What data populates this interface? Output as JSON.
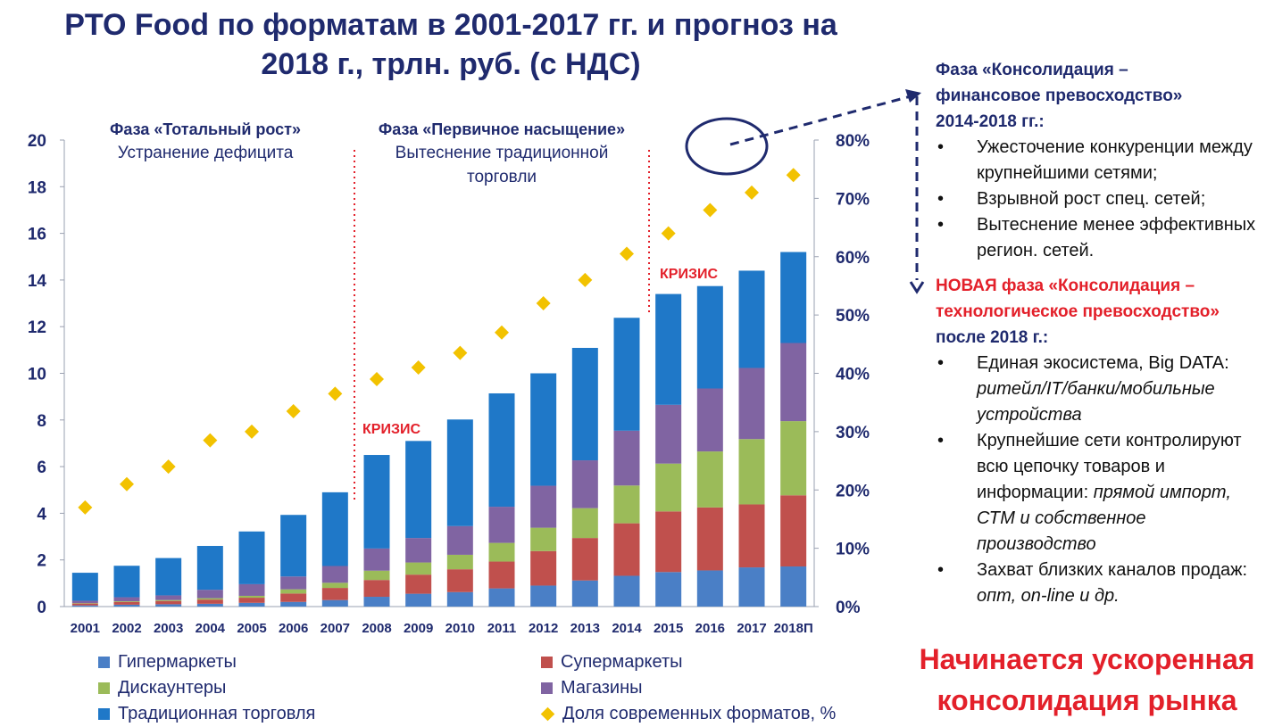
{
  "title": "PTO Food по форматам в 2001-2017 гг. и прогноз на 2018 г., трлн. руб. (с НДС)",
  "chart_data": {
    "type": "bar",
    "stacked": true,
    "categories": [
      "2001",
      "2002",
      "2003",
      "2004",
      "2005",
      "2006",
      "2007",
      "2008",
      "2009",
      "2010",
      "2011",
      "2012",
      "2013",
      "2014",
      "2015",
      "2016",
      "2017",
      "2018П"
    ],
    "series": [
      {
        "name": "Гипермаркеты",
        "color": "#4a7fc6",
        "values": [
          0.05,
          0.08,
          0.1,
          0.12,
          0.16,
          0.2,
          0.28,
          0.42,
          0.55,
          0.62,
          0.78,
          0.9,
          1.12,
          1.32,
          1.48,
          1.55,
          1.68,
          1.72
        ]
      },
      {
        "name": "Супермаркеты",
        "color": "#c0504d",
        "values": [
          0.08,
          0.12,
          0.14,
          0.18,
          0.22,
          0.36,
          0.52,
          0.72,
          0.82,
          0.98,
          1.15,
          1.48,
          1.82,
          2.25,
          2.6,
          2.7,
          2.7,
          3.05
        ]
      },
      {
        "name": "Дискаунтеры",
        "color": "#9bbb59",
        "values": [
          0.02,
          0.03,
          0.04,
          0.06,
          0.08,
          0.18,
          0.22,
          0.4,
          0.52,
          0.62,
          0.8,
          1.0,
          1.28,
          1.62,
          2.05,
          2.4,
          2.8,
          3.18
        ]
      },
      {
        "name": "Магазины",
        "color": "#8064a2",
        "values": [
          0.1,
          0.17,
          0.2,
          0.36,
          0.5,
          0.55,
          0.72,
          0.95,
          1.05,
          1.23,
          1.55,
          1.8,
          2.05,
          2.35,
          2.52,
          2.7,
          3.05,
          3.35
        ]
      },
      {
        "name": "Традиционная торговля",
        "color": "#1f78c8",
        "values": [
          1.2,
          1.35,
          1.6,
          1.88,
          2.26,
          2.64,
          3.16,
          4.01,
          4.16,
          4.57,
          4.86,
          4.82,
          4.82,
          4.84,
          4.75,
          4.39,
          4.17,
          3.9
        ]
      }
    ],
    "line_series": {
      "name": "Доля современных форматов, %",
      "color": "#f2c200",
      "marker": "diamond",
      "axis": "right",
      "values": [
        17,
        21,
        24,
        28.5,
        30,
        33.5,
        36.5,
        39,
        41,
        43.5,
        47,
        52,
        56,
        60.5,
        64,
        68,
        71,
        74
      ]
    },
    "y_left": {
      "min": 0,
      "max": 20,
      "ticks": [
        "0",
        "2",
        "4",
        "6",
        "8",
        "10",
        "12",
        "14",
        "16",
        "18",
        "20"
      ]
    },
    "y_right": {
      "min": 0,
      "max": 80,
      "ticks": [
        "0%",
        "10%",
        "20%",
        "30%",
        "40%",
        "50%",
        "60%",
        "70%",
        "80%"
      ]
    },
    "annotations": {
      "phase1_title": "Фаза «Тотальный рост»",
      "phase1_sub": "Устранение дефицита",
      "phase2_title": "Фаза «Первичное насыщение»",
      "phase2_sub1": "Вытеснение традиционной",
      "phase2_sub2": "торговли",
      "crisis1": "КРИЗИС",
      "crisis2": "КРИЗИС"
    }
  },
  "legend": [
    {
      "label": "Гипермаркеты",
      "color": "#4a7fc6"
    },
    {
      "label": "Супермаркеты",
      "color": "#c0504d"
    },
    {
      "label": "Дискаунтеры",
      "color": "#9bbb59"
    },
    {
      "label": "Магазины",
      "color": "#8064a2"
    },
    {
      "label": "Традиционная торговля",
      "color": "#1f78c8"
    },
    {
      "label": "Доля современных форматов, %",
      "color": "#f2c200"
    }
  ],
  "right_panel": {
    "phase_title1": "Фаза «Консолидация –",
    "phase_title2": "финансовое превосходство»",
    "phase_title3": "2014-2018 гг.:",
    "bullets1": [
      "Ужесточение конкуренции между крупнейшими сетями;",
      "Взрывной рост спец. сетей;",
      "Вытеснение менее эффективных регион. сетей."
    ],
    "new_title1": "НОВАЯ фаза «Консолидация –",
    "new_title2": "технологическое превосходство»",
    "new_title3": "после 2018 г.:",
    "b2_1_normal": "Единая экосистема, Big DATA:",
    "b2_1_italic": "ритейл/IT/банки/мобильные устройства",
    "b2_2_normal": "Крупнейшие сети контролируют всю цепочку товаров и информации:",
    "b2_2_italic": "прямой импорт, СТМ и собственное производство",
    "b2_3_normal": "Захват близких каналов продаж:",
    "b2_3_italic": "опт, on-line и др."
  },
  "bottom_text": "Начинается ускоренная консолидация рынка"
}
